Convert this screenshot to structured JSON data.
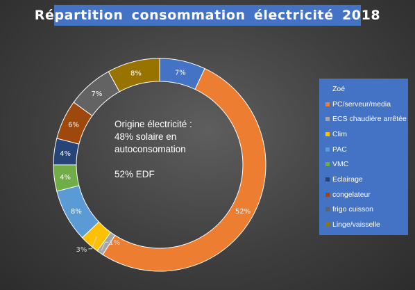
{
  "chart_data": {
    "type": "pie",
    "title": "Répartition consommation électricité 2018",
    "categories": [
      "Zoé",
      "PC/serveur/media",
      "ECS chaudière arrêtée",
      "Clim",
      "PAC",
      "VMC",
      "Eclairage",
      "congelateur",
      "frigo cuisson",
      "Linge/vaisselle"
    ],
    "values": [
      7,
      52,
      1,
      3,
      8,
      4,
      4,
      6,
      7,
      8
    ],
    "value_labels": [
      "7%",
      "52%",
      "1%",
      "3%",
      "8%",
      "4%",
      "4%",
      "6%",
      "7%",
      "8%"
    ],
    "colors": [
      "#4472c4",
      "#ed7d31",
      "#a5a5a5",
      "#ffc000",
      "#5b9bd5",
      "#70ad47",
      "#264478",
      "#9e480e",
      "#636363",
      "#997300"
    ],
    "label_colors": [
      "#ffffff",
      "#ffffff",
      "#ffffff",
      "#ffffff",
      "#ffffff",
      "#ffffff",
      "#ffffff",
      "#ffffff",
      "#ffffff",
      "#ffffff"
    ],
    "donut": true,
    "legend_position": "right",
    "annotation": {
      "lines": [
        "Origine électricité :",
        "48% solaire en",
        "autoconsomation",
        "",
        "52% EDF"
      ]
    }
  }
}
